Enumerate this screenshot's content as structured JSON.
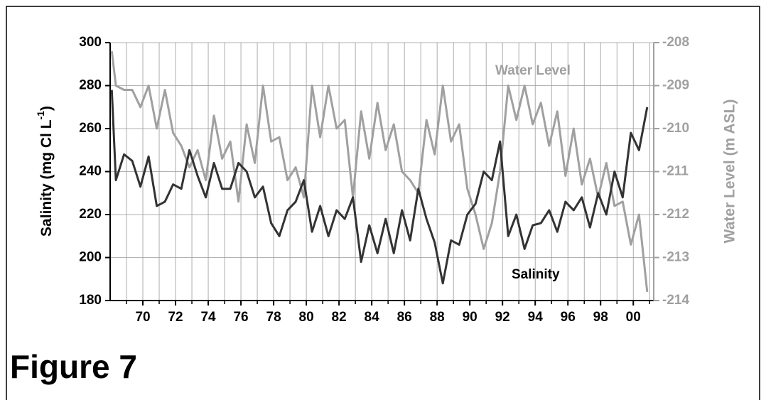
{
  "caption": "Figure 7",
  "chart_data": {
    "type": "line",
    "ylabel": "Salinity (mg Cl L",
    "ylabel_sup": "-1",
    "ylabel_end": ")",
    "y2label": "Water Level (m ASL)",
    "x": [
      1968.1,
      1968.35,
      1968.85,
      1969.35,
      1969.85,
      1970.35,
      1970.85,
      1971.35,
      1971.85,
      1972.35,
      1972.85,
      1973.35,
      1973.85,
      1974.35,
      1974.85,
      1975.35,
      1975.85,
      1976.35,
      1976.85,
      1977.35,
      1977.85,
      1978.35,
      1978.85,
      1979.35,
      1979.85,
      1980.35,
      1980.85,
      1981.35,
      1981.85,
      1982.35,
      1982.85,
      1983.35,
      1983.85,
      1984.35,
      1984.85,
      1985.35,
      1985.85,
      1986.35,
      1986.85,
      1987.35,
      1987.85,
      1988.35,
      1988.85,
      1989.35,
      1989.85,
      1990.35,
      1990.85,
      1991.35,
      1991.85,
      1992.35,
      1992.85,
      1993.35,
      1993.85,
      1994.35,
      1994.85,
      1995.35,
      1995.85,
      1996.35,
      1996.85,
      1997.35,
      1997.85,
      1998.35,
      1998.85,
      1999.35,
      1999.85,
      2000.35,
      2000.85
    ],
    "series": [
      {
        "name": "Water Level",
        "color": "#a0a0a0",
        "axis": "y2",
        "values": [
          -208.2,
          -209.0,
          -209.1,
          -209.1,
          -209.5,
          -209.0,
          -210.0,
          -209.1,
          -210.1,
          -210.4,
          -210.9,
          -210.5,
          -211.2,
          -209.7,
          -210.7,
          -210.3,
          -211.7,
          -209.9,
          -210.8,
          -209.0,
          -210.3,
          -210.2,
          -211.2,
          -210.9,
          -211.6,
          -209.0,
          -210.2,
          -209.0,
          -210.0,
          -209.8,
          -211.6,
          -209.6,
          -210.7,
          -209.4,
          -210.5,
          -209.9,
          -211.0,
          -211.2,
          -211.5,
          -209.8,
          -210.6,
          -209.0,
          -210.3,
          -209.9,
          -211.4,
          -212.0,
          -212.8,
          -212.2,
          -211.0,
          -209.0,
          -209.8,
          -209.0,
          -209.9,
          -209.4,
          -210.4,
          -209.6,
          -211.1,
          -210.0,
          -211.3,
          -210.7,
          -211.6,
          -210.8,
          -211.8,
          -211.7,
          -212.7,
          -212.0,
          -213.8
        ]
      },
      {
        "name": "Salinity",
        "color": "#333333",
        "values": [
          278,
          236,
          248,
          245,
          233,
          247,
          224,
          226,
          234,
          232,
          250,
          238,
          228,
          244,
          232,
          232,
          244,
          240,
          228,
          233,
          216,
          210,
          222,
          226,
          236,
          212,
          224,
          210,
          222,
          218,
          228,
          198,
          215,
          202,
          218,
          202,
          222,
          208,
          232,
          218,
          207,
          188,
          208,
          206,
          220,
          225,
          240,
          236,
          254,
          210,
          220,
          204,
          215,
          216,
          222,
          212,
          226,
          222,
          228,
          214,
          230,
          220,
          240,
          228,
          258,
          250,
          270
        ]
      }
    ],
    "xlim": [
      1968,
      2001.25
    ],
    "xticks": [
      {
        "value": 1970,
        "label": "70"
      },
      {
        "value": 1972,
        "label": "72"
      },
      {
        "value": 1974,
        "label": "74"
      },
      {
        "value": 1976,
        "label": "76"
      },
      {
        "value": 1978,
        "label": "78"
      },
      {
        "value": 1980,
        "label": "80"
      },
      {
        "value": 1982,
        "label": "82"
      },
      {
        "value": 1984,
        "label": "84"
      },
      {
        "value": 1986,
        "label": "86"
      },
      {
        "value": 1988,
        "label": "88"
      },
      {
        "value": 1990,
        "label": "90"
      },
      {
        "value": 1992,
        "label": "92"
      },
      {
        "value": 1994,
        "label": "94"
      },
      {
        "value": 1996,
        "label": "96"
      },
      {
        "value": 1998,
        "label": "98"
      },
      {
        "value": 2000,
        "label": "00"
      }
    ],
    "xminor": [
      1969,
      1971,
      1973,
      1975,
      1977,
      1979,
      1981,
      1983,
      1985,
      1987,
      1989,
      1991,
      1993,
      1995,
      1997,
      1999,
      2001
    ],
    "ylim": [
      180,
      300
    ],
    "yticks": [
      180,
      200,
      220,
      240,
      260,
      280,
      300
    ],
    "y2lim": [
      -214,
      -208
    ],
    "y2ticks": [
      -214,
      -213,
      -212,
      -211,
      -210,
      -209,
      -208
    ],
    "grid": true
  }
}
